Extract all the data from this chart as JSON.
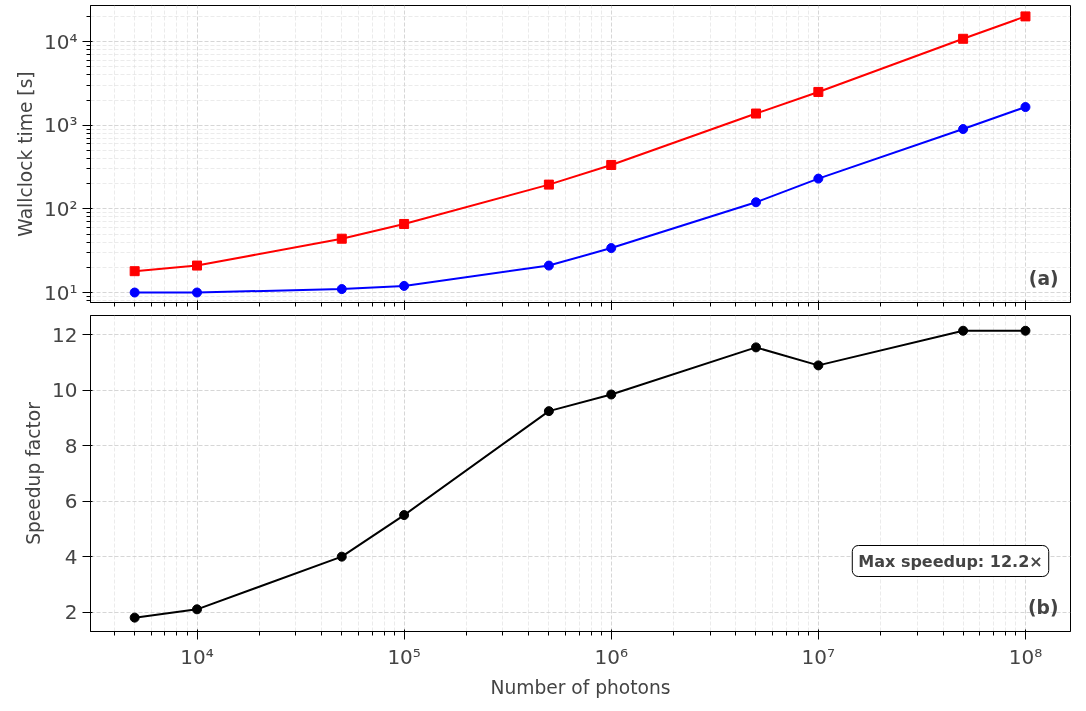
{
  "chart_data": [
    {
      "type": "line",
      "ylabel": "Wallclock time [s]",
      "log": "xy",
      "grid": true,
      "tick_labels": "y",
      "line_style": "solid",
      "x": [
        5000,
        10000,
        50000,
        100000,
        500000,
        1000000,
        5000000,
        10000000,
        50000000,
        100000000
      ],
      "xlim": [
        3060,
        165000000
      ],
      "xticks": [
        {
          "value": 10000,
          "label": null
        },
        {
          "value": 100000,
          "label": null
        },
        {
          "value": 1000000,
          "label": null
        },
        {
          "value": 10000000,
          "label": null
        },
        {
          "value": 100000000,
          "label": null
        }
      ],
      "ylim": [
        7.6,
        27000
      ],
      "yticks": [
        {
          "value": 10,
          "label": "10¹"
        },
        {
          "value": 100,
          "label": "10²"
        },
        {
          "value": 1000,
          "label": "10³"
        },
        {
          "value": 10000,
          "label": "10⁴"
        }
      ],
      "series": [
        {
          "color": "#0000ff",
          "marker": "circle",
          "values": [
            10,
            10,
            11,
            12,
            21,
            34,
            120,
            230,
            900,
            1650
          ]
        },
        {
          "color": "#ff0000",
          "marker": "square",
          "values": [
            18,
            21,
            44,
            66,
            195,
            335,
            1380,
            2500,
            10800,
            20000
          ]
        }
      ],
      "annotations": [
        "(a)"
      ]
    },
    {
      "type": "line",
      "xlabel": "Number of photons",
      "ylabel": "Speedup factor",
      "log": "x",
      "grid": true,
      "marker": "circle",
      "line_style": "solid",
      "x": [
        5000,
        10000,
        50000,
        100000,
        500000,
        1000000,
        5000000,
        10000000,
        50000000,
        100000000
      ],
      "xlim": [
        3060,
        165000000
      ],
      "xticks": [
        {
          "value": 10000,
          "label": "10⁴"
        },
        {
          "value": 100000,
          "label": "10⁵"
        },
        {
          "value": 1000000,
          "label": "10⁶"
        },
        {
          "value": 10000000,
          "label": "10⁷"
        },
        {
          "value": 100000000,
          "label": "10⁸"
        }
      ],
      "ylim": [
        1.3,
        12.7
      ],
      "yticks": [
        2,
        4,
        6,
        8,
        10,
        12
      ],
      "series": [
        {
          "color": "#000000",
          "values": [
            1.8,
            2.1,
            4.0,
            5.5,
            9.25,
            9.85,
            11.55,
            10.9,
            12.15,
            12.15
          ]
        }
      ],
      "annotations": [
        "Max speedup: 12.2×",
        "(b)"
      ]
    }
  ]
}
